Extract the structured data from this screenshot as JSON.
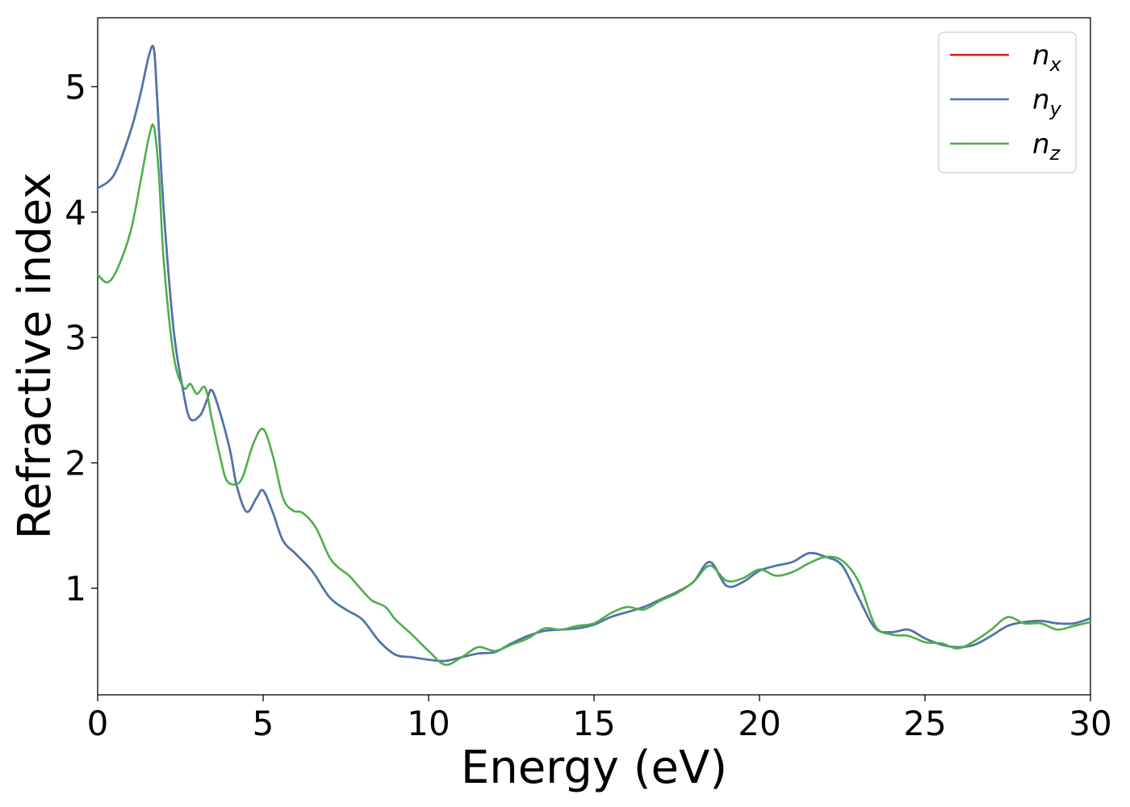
{
  "chart_data": {
    "type": "line",
    "xlabel": "Energy (eV)",
    "ylabel": "Refractive index",
    "xlim": [
      0,
      30
    ],
    "ylim": [
      0.15,
      5.55
    ],
    "xticks": [
      0,
      5,
      10,
      15,
      20,
      25,
      30
    ],
    "yticks": [
      1,
      2,
      3,
      4,
      5
    ],
    "grid": false,
    "legend_position": "top-right",
    "series": [
      {
        "name": "n_x",
        "label_base": "n",
        "label_sub": "x",
        "color": "#e41a1c",
        "x": [
          0,
          0.5,
          1,
          1.3,
          1.55,
          1.7,
          1.8,
          2,
          2.3,
          2.6,
          2.8,
          3.1,
          3.3,
          3.45,
          3.7,
          4,
          4.2,
          4.5,
          4.8,
          5,
          5.3,
          5.6,
          6,
          6.5,
          7,
          7.5,
          8,
          8.5,
          9,
          9.5,
          10,
          10.5,
          11,
          11.5,
          12,
          12.5,
          13,
          13.5,
          14,
          14.5,
          15,
          15.5,
          16,
          16.5,
          17,
          17.5,
          18,
          18.5,
          19,
          19.5,
          20,
          20.5,
          21,
          21.5,
          22,
          22.5,
          23,
          23.5,
          24,
          24.5,
          25,
          25.5,
          26,
          26.5,
          27,
          27.5,
          28,
          28.5,
          29,
          29.5,
          30
        ],
        "y": [
          4.19,
          4.3,
          4.65,
          4.95,
          5.25,
          5.3,
          4.9,
          4.0,
          3.05,
          2.55,
          2.35,
          2.38,
          2.5,
          2.58,
          2.4,
          2.1,
          1.82,
          1.61,
          1.72,
          1.78,
          1.6,
          1.38,
          1.27,
          1.13,
          0.93,
          0.83,
          0.75,
          0.58,
          0.47,
          0.45,
          0.43,
          0.42,
          0.45,
          0.48,
          0.49,
          0.56,
          0.62,
          0.66,
          0.67,
          0.68,
          0.71,
          0.77,
          0.81,
          0.85,
          0.91,
          0.97,
          1.05,
          1.21,
          1.02,
          1.05,
          1.14,
          1.18,
          1.21,
          1.28,
          1.25,
          1.18,
          0.92,
          0.68,
          0.65,
          0.67,
          0.6,
          0.55,
          0.53,
          0.55,
          0.62,
          0.7,
          0.73,
          0.74,
          0.72,
          0.72,
          0.76
        ]
      },
      {
        "name": "n_y",
        "label_base": "n",
        "label_sub": "y",
        "color": "#4878b0",
        "x": [
          0,
          0.5,
          1,
          1.3,
          1.55,
          1.7,
          1.8,
          2,
          2.3,
          2.6,
          2.8,
          3.1,
          3.3,
          3.45,
          3.7,
          4,
          4.2,
          4.5,
          4.8,
          5,
          5.3,
          5.6,
          6,
          6.5,
          7,
          7.5,
          8,
          8.5,
          9,
          9.5,
          10,
          10.5,
          11,
          11.5,
          12,
          12.5,
          13,
          13.5,
          14,
          14.5,
          15,
          15.5,
          16,
          16.5,
          17,
          17.5,
          18,
          18.5,
          19,
          19.5,
          20,
          20.5,
          21,
          21.5,
          22,
          22.5,
          23,
          23.5,
          24,
          24.5,
          25,
          25.5,
          26,
          26.5,
          27,
          27.5,
          28,
          28.5,
          29,
          29.5,
          30
        ],
        "y": [
          4.19,
          4.3,
          4.65,
          4.95,
          5.25,
          5.3,
          4.9,
          4.0,
          3.05,
          2.55,
          2.35,
          2.38,
          2.5,
          2.58,
          2.4,
          2.1,
          1.82,
          1.61,
          1.72,
          1.78,
          1.6,
          1.38,
          1.27,
          1.13,
          0.93,
          0.83,
          0.75,
          0.58,
          0.47,
          0.45,
          0.43,
          0.42,
          0.45,
          0.48,
          0.49,
          0.56,
          0.62,
          0.66,
          0.67,
          0.68,
          0.71,
          0.77,
          0.81,
          0.85,
          0.91,
          0.97,
          1.05,
          1.21,
          1.02,
          1.05,
          1.14,
          1.18,
          1.21,
          1.28,
          1.25,
          1.18,
          0.92,
          0.68,
          0.65,
          0.67,
          0.6,
          0.55,
          0.53,
          0.55,
          0.62,
          0.7,
          0.73,
          0.74,
          0.72,
          0.72,
          0.76
        ]
      },
      {
        "name": "n_z",
        "label_base": "n",
        "label_sub": "z",
        "color": "#4daf4a",
        "x": [
          0,
          0.3,
          0.6,
          1,
          1.3,
          1.55,
          1.7,
          1.85,
          2,
          2.3,
          2.6,
          2.8,
          3,
          3.25,
          3.45,
          3.7,
          3.9,
          4.2,
          4.4,
          4.7,
          5,
          5.3,
          5.6,
          5.9,
          6.2,
          6.6,
          7,
          7.3,
          7.6,
          8,
          8.3,
          8.7,
          9,
          9.5,
          10,
          10.5,
          11,
          11.5,
          12,
          12.5,
          13,
          13.5,
          14,
          14.5,
          15,
          15.5,
          16,
          16.5,
          17,
          17.5,
          18,
          18.5,
          19,
          19.5,
          20,
          20.5,
          21,
          21.5,
          22,
          22.5,
          23,
          23.5,
          24,
          24.5,
          25,
          25.5,
          26,
          26.5,
          27,
          27.5,
          28,
          28.5,
          29,
          29.5,
          30
        ],
        "y": [
          3.5,
          3.44,
          3.55,
          3.85,
          4.25,
          4.6,
          4.68,
          4.3,
          3.6,
          2.85,
          2.6,
          2.63,
          2.55,
          2.6,
          2.35,
          2.05,
          1.86,
          1.83,
          1.9,
          2.15,
          2.27,
          2.05,
          1.72,
          1.62,
          1.6,
          1.48,
          1.25,
          1.16,
          1.1,
          0.98,
          0.9,
          0.85,
          0.75,
          0.63,
          0.5,
          0.39,
          0.45,
          0.53,
          0.5,
          0.55,
          0.6,
          0.68,
          0.67,
          0.7,
          0.72,
          0.8,
          0.85,
          0.83,
          0.9,
          0.96,
          1.05,
          1.18,
          1.06,
          1.08,
          1.15,
          1.1,
          1.13,
          1.2,
          1.25,
          1.22,
          1.05,
          0.7,
          0.63,
          0.62,
          0.57,
          0.56,
          0.52,
          0.58,
          0.67,
          0.77,
          0.72,
          0.72,
          0.67,
          0.7,
          0.73
        ]
      }
    ]
  }
}
